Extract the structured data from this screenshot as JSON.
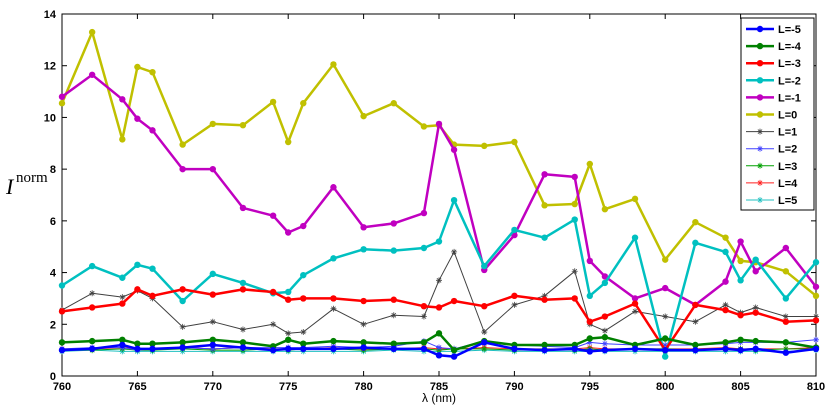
{
  "chart_data": {
    "type": "line",
    "xlabel": "λ (nm)",
    "ylabel": "I",
    "ylabel_sup": "norm",
    "xlim": [
      760,
      810
    ],
    "ylim": [
      0,
      14
    ],
    "x_ticks": [
      760,
      765,
      770,
      775,
      780,
      785,
      790,
      795,
      800,
      805,
      810
    ],
    "y_ticks": [
      0,
      2,
      4,
      6,
      8,
      10,
      12,
      14
    ],
    "grid": false,
    "legend_position": "top-right",
    "x": [
      760,
      762,
      764,
      765,
      766,
      768,
      770,
      772,
      774,
      775,
      776,
      778,
      780,
      782,
      784,
      785,
      786,
      788,
      790,
      792,
      794,
      795,
      796,
      798,
      800,
      802,
      804,
      805,
      806,
      808,
      810
    ],
    "series": [
      {
        "name": "L=-5",
        "color": "#0000ff",
        "marker": "dot",
        "width": 2.5,
        "values": [
          1.0,
          1.05,
          1.2,
          1.05,
          1.05,
          1.1,
          1.2,
          1.1,
          1.0,
          1.05,
          1.05,
          1.05,
          1.1,
          1.05,
          1.05,
          0.8,
          0.75,
          1.3,
          1.05,
          1.0,
          1.05,
          0.95,
          1.0,
          1.05,
          1.0,
          1.0,
          1.05,
          1.0,
          1.05,
          0.9,
          1.05
        ]
      },
      {
        "name": "L=-4",
        "color": "#008000",
        "marker": "dot",
        "width": 2.5,
        "values": [
          1.3,
          1.35,
          1.4,
          1.25,
          1.25,
          1.3,
          1.4,
          1.3,
          1.15,
          1.4,
          1.25,
          1.35,
          1.3,
          1.25,
          1.3,
          1.65,
          1.0,
          1.35,
          1.2,
          1.2,
          1.2,
          1.45,
          1.5,
          1.2,
          1.45,
          1.2,
          1.3,
          1.4,
          1.35,
          1.3,
          1.1
        ]
      },
      {
        "name": "L=-3",
        "color": "#ff0000",
        "marker": "dot",
        "width": 2.5,
        "values": [
          2.5,
          2.65,
          2.8,
          3.35,
          3.1,
          3.35,
          3.15,
          3.35,
          3.25,
          2.95,
          3.0,
          3.0,
          2.9,
          2.95,
          2.7,
          2.65,
          2.9,
          2.7,
          3.1,
          2.95,
          3.0,
          2.1,
          2.3,
          2.8,
          1.0,
          2.75,
          2.55,
          2.35,
          2.45,
          2.1,
          2.15
        ]
      },
      {
        "name": "L=-2",
        "color": "#00c0c0",
        "marker": "dot",
        "width": 2.5,
        "values": [
          3.5,
          4.25,
          3.8,
          4.3,
          4.15,
          2.9,
          3.95,
          3.6,
          3.2,
          3.25,
          3.9,
          4.55,
          4.9,
          4.85,
          4.95,
          5.2,
          6.8,
          4.25,
          5.65,
          5.35,
          6.05,
          3.1,
          3.6,
          5.35,
          0.75,
          5.15,
          4.8,
          3.7,
          4.5,
          3.0,
          4.4
        ]
      },
      {
        "name": "L=-1",
        "color": "#c000c0",
        "marker": "dot",
        "width": 2.5,
        "values": [
          10.8,
          11.65,
          10.7,
          9.95,
          9.5,
          8.0,
          8.0,
          6.5,
          6.2,
          5.55,
          5.8,
          7.3,
          5.75,
          5.9,
          6.3,
          9.75,
          8.75,
          4.1,
          5.45,
          7.8,
          7.7,
          4.45,
          3.85,
          3.0,
          3.4,
          2.75,
          3.65,
          5.2,
          4.05,
          4.95,
          3.45
        ]
      },
      {
        "name": "L=0",
        "color": "#c0c000",
        "marker": "dot",
        "width": 2.5,
        "values": [
          10.55,
          13.3,
          9.15,
          11.95,
          11.75,
          8.95,
          9.75,
          9.7,
          10.6,
          9.05,
          10.55,
          12.05,
          10.05,
          10.55,
          9.65,
          9.7,
          8.95,
          8.9,
          9.05,
          6.6,
          6.65,
          8.2,
          6.45,
          6.85,
          4.5,
          5.95,
          5.35,
          4.45,
          4.4,
          4.05,
          3.1
        ]
      },
      {
        "name": "L=1",
        "color": "#404040",
        "marker": "star",
        "width": 1,
        "values": [
          2.55,
          3.2,
          3.05,
          3.3,
          3.0,
          1.9,
          2.1,
          1.8,
          2.0,
          1.65,
          1.7,
          2.6,
          2.0,
          2.35,
          2.3,
          3.7,
          4.8,
          1.7,
          2.75,
          3.1,
          4.05,
          2.0,
          1.75,
          2.5,
          2.3,
          2.1,
          2.75,
          2.45,
          2.65,
          2.3,
          2.3
        ]
      },
      {
        "name": "L=2",
        "color": "#4040ff",
        "marker": "star",
        "width": 1,
        "values": [
          1.05,
          1.1,
          1.1,
          1.0,
          1.05,
          1.1,
          1.05,
          1.1,
          1.1,
          1.1,
          1.1,
          1.15,
          1.1,
          1.15,
          1.35,
          1.1,
          1.05,
          1.35,
          1.2,
          1.15,
          1.1,
          1.3,
          1.25,
          1.2,
          1.2,
          1.2,
          1.25,
          1.3,
          1.3,
          1.3,
          1.4
        ]
      },
      {
        "name": "L=3",
        "color": "#00a000",
        "marker": "star",
        "width": 1,
        "values": [
          1.0,
          1.0,
          1.05,
          1.0,
          1.0,
          1.05,
          1.0,
          1.0,
          1.05,
          1.0,
          1.05,
          1.05,
          1.0,
          1.05,
          1.05,
          1.0,
          1.05,
          1.05,
          1.0,
          1.05,
          1.0,
          1.05,
          1.0,
          1.05,
          1.05,
          1.0,
          1.05,
          1.05,
          1.0,
          1.05,
          1.05
        ]
      },
      {
        "name": "L=4",
        "color": "#ff2020",
        "marker": "star",
        "width": 1,
        "values": [
          1.05,
          1.05,
          1.1,
          1.05,
          1.05,
          1.1,
          1.05,
          1.1,
          1.05,
          1.05,
          1.05,
          1.1,
          1.05,
          1.05,
          1.1,
          1.05,
          1.05,
          1.1,
          1.05,
          1.05,
          1.05,
          1.1,
          1.05,
          1.05,
          1.05,
          1.05,
          1.1,
          1.05,
          1.05,
          1.05,
          1.1
        ]
      },
      {
        "name": "L=5",
        "color": "#20c0c0",
        "marker": "star",
        "width": 1,
        "values": [
          0.95,
          1.0,
          0.95,
          0.95,
          0.95,
          0.95,
          0.95,
          0.95,
          0.95,
          0.95,
          0.95,
          0.95,
          0.95,
          1.0,
          0.95,
          0.95,
          0.95,
          1.0,
          0.95,
          0.95,
          0.95,
          0.95,
          0.95,
          0.95,
          0.95,
          0.95,
          0.95,
          0.95,
          0.95,
          0.95,
          1.0
        ]
      }
    ]
  }
}
